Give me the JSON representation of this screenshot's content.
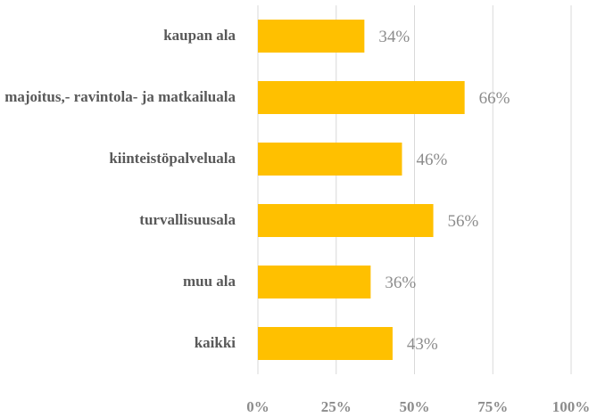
{
  "chart_data": {
    "type": "bar",
    "orientation": "horizontal",
    "categories": [
      "kaupan ala",
      "majoitus,- ravintola- ja matkailuala",
      "kiinteistöpalveluala",
      "turvallisuusala",
      "muu ala",
      "kaikki"
    ],
    "values": [
      34,
      66,
      46,
      56,
      36,
      43
    ],
    "value_labels": [
      "34%",
      "66%",
      "46%",
      "56%",
      "36%",
      "43%"
    ],
    "color": "#ffc000",
    "xlim": [
      0,
      100
    ],
    "xticks": [
      {
        "value": 0,
        "label": "0%"
      },
      {
        "value": 25,
        "label": "25%"
      },
      {
        "value": 50,
        "label": "50%"
      },
      {
        "value": 75,
        "label": "75%"
      },
      {
        "value": 100,
        "label": "100%"
      }
    ],
    "grid": true
  }
}
